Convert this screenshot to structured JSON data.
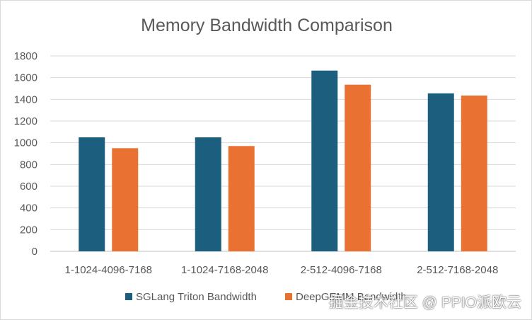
{
  "chart_data": {
    "type": "bar",
    "title": "Memory Bandwidth Comparison",
    "xlabel": "",
    "ylabel": "",
    "categories": [
      "1-1024-4096-7168",
      "1-1024-7168-2048",
      "2-512-4096-7168",
      "2-512-7168-2048"
    ],
    "series": [
      {
        "name": "SGLang Triton Bandwidth",
        "color": "#1b5e7e",
        "values": [
          1050,
          1050,
          1665,
          1455
        ]
      },
      {
        "name": "DeepGEMM Bandwidth",
        "color": "#e97132",
        "values": [
          950,
          970,
          1535,
          1435
        ]
      }
    ],
    "ylim": [
      0,
      1800
    ],
    "yticks": [
      0,
      200,
      400,
      600,
      800,
      1000,
      1200,
      1400,
      1600,
      1800
    ],
    "grid": true,
    "legend": "bottom"
  },
  "watermark": "掘金技术社区 @ PPIO派欧云"
}
